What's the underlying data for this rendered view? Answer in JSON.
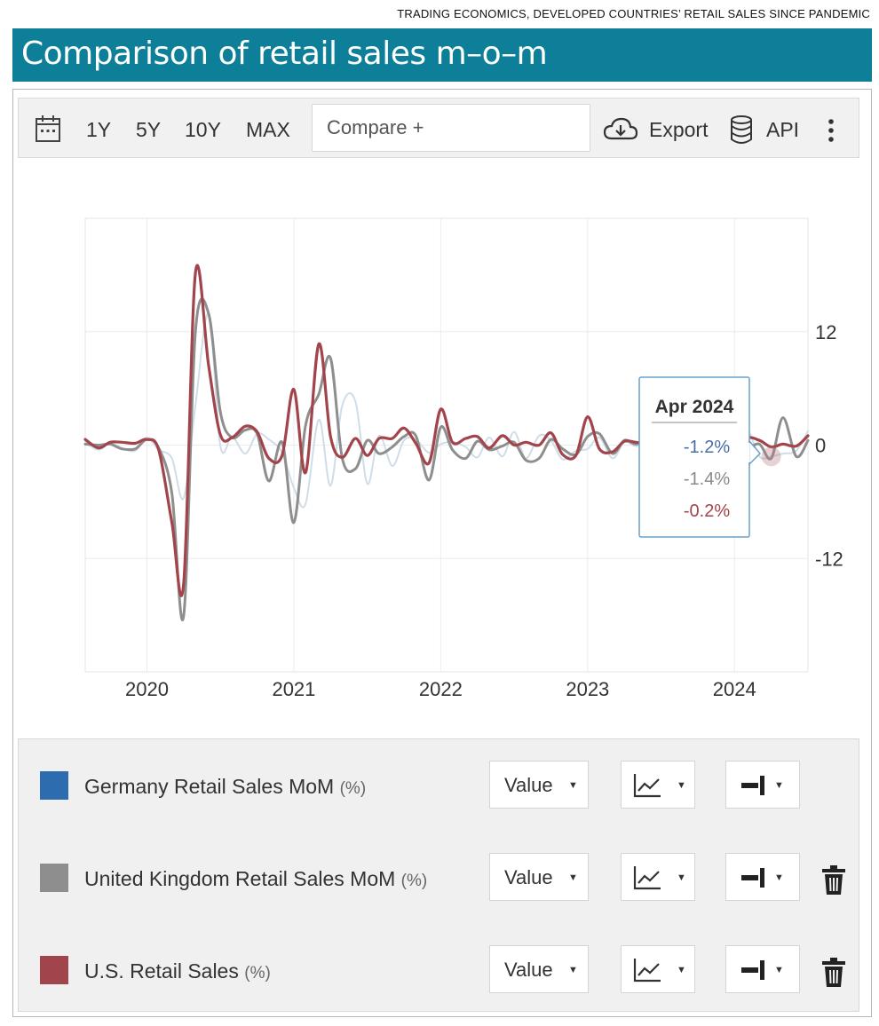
{
  "source_line": "TRADING ECONOMICS, DEVELOPED COUNTRIES’ RETAIL SALES SINCE PANDEMIC",
  "title": "Comparison of retail sales m–o–m",
  "toolbar": {
    "ranges": [
      "1Y",
      "5Y",
      "10Y",
      "MAX"
    ],
    "compare_placeholder": "Compare +",
    "export_label": "Export",
    "api_label": "API",
    "icons": [
      "calendar-icon",
      "cloud-download-icon",
      "database-icon",
      "more-vertical-icon"
    ]
  },
  "tooltip": {
    "date": "Apr 2024",
    "values": [
      "-1.2%",
      "-1.4%",
      "-0.2%"
    ]
  },
  "legend": {
    "rows": [
      {
        "name": "Germany Retail Sales MoM",
        "unit": "(%)",
        "color": "#2e6cb0",
        "value_label": "Value",
        "deletable": false
      },
      {
        "name": "United Kingdom Retail Sales MoM",
        "unit": "(%)",
        "color": "#8e8e8e",
        "value_label": "Value",
        "deletable": true
      },
      {
        "name": "U.S. Retail Sales",
        "unit": "(%)",
        "color": "#a2444b",
        "value_label": "Value",
        "deletable": true
      }
    ]
  },
  "chart_data": {
    "type": "line",
    "x_tick_labels": [
      "2020",
      "2021",
      "2022",
      "2023",
      "2024"
    ],
    "y_tick_labels": [
      "12",
      "0",
      "-12"
    ],
    "ylim": [
      -24,
      24
    ],
    "xlim": [
      2019.58,
      2024.5
    ],
    "grid": true,
    "series": [
      {
        "name": "Germany Retail Sales MoM",
        "color": "#cfdde9",
        "points": [
          [
            2019.58,
            0.3
          ],
          [
            2019.67,
            -0.5
          ],
          [
            2019.75,
            0.2
          ],
          [
            2019.83,
            -0.3
          ],
          [
            2019.92,
            -0.6
          ],
          [
            2020.0,
            0.8
          ],
          [
            2020.08,
            -0.5
          ],
          [
            2020.17,
            -1.4
          ],
          [
            2020.25,
            -5.6
          ],
          [
            2020.33,
            4.2
          ],
          [
            2020.42,
            13.9
          ],
          [
            2020.5,
            -0.1
          ],
          [
            2020.58,
            0.9
          ],
          [
            2020.67,
            -0.9
          ],
          [
            2020.75,
            1.2
          ],
          [
            2020.83,
            0.6
          ],
          [
            2020.92,
            -0.8
          ],
          [
            2021.0,
            -4.5
          ],
          [
            2021.08,
            -6.2
          ],
          [
            2021.17,
            2.7
          ],
          [
            2021.25,
            -4.3
          ],
          [
            2021.33,
            4.2
          ],
          [
            2021.42,
            4.6
          ],
          [
            2021.5,
            -4.1
          ],
          [
            2021.58,
            1.0
          ],
          [
            2021.67,
            -2.2
          ],
          [
            2021.75,
            0.5
          ],
          [
            2021.83,
            0.6
          ],
          [
            2021.92,
            -0.8
          ],
          [
            2022.0,
            0.1
          ],
          [
            2022.08,
            0.3
          ],
          [
            2022.17,
            -0.2
          ],
          [
            2022.25,
            -1.3
          ],
          [
            2022.33,
            0.8
          ],
          [
            2022.42,
            -1.2
          ],
          [
            2022.5,
            1.4
          ],
          [
            2022.58,
            -1.4
          ],
          [
            2022.67,
            1.0
          ],
          [
            2022.75,
            0.5
          ],
          [
            2022.83,
            -1.5
          ],
          [
            2022.92,
            -0.6
          ],
          [
            2023.0,
            -0.4
          ],
          [
            2023.08,
            0.8
          ],
          [
            2023.17,
            -1.4
          ],
          [
            2023.25,
            0.3
          ],
          [
            2023.33,
            -0.1
          ],
          [
            2023.42,
            0.3
          ],
          [
            2023.5,
            -0.5
          ],
          [
            2023.58,
            -0.8
          ],
          [
            2023.67,
            -0.6
          ],
          [
            2023.75,
            1.1
          ],
          [
            2023.83,
            -2.5
          ],
          [
            2023.92,
            0.2
          ],
          [
            2024.0,
            -0.4
          ],
          [
            2024.08,
            1.8
          ],
          [
            2024.17,
            -1.2
          ],
          [
            2024.25,
            -1.2
          ],
          [
            2024.33,
            -0.9
          ],
          [
            2024.42,
            -0.6
          ],
          [
            2024.5,
            1.5
          ]
        ]
      },
      {
        "name": "United Kingdom Retail Sales MoM",
        "color": "#8e8e8e",
        "points": [
          [
            2019.58,
            0.1
          ],
          [
            2019.67,
            0.0
          ],
          [
            2019.75,
            0.1
          ],
          [
            2019.83,
            -0.4
          ],
          [
            2019.92,
            -0.4
          ],
          [
            2020.0,
            0.6
          ],
          [
            2020.08,
            -0.3
          ],
          [
            2020.17,
            -5.1
          ],
          [
            2020.25,
            -18.1
          ],
          [
            2020.33,
            12.0
          ],
          [
            2020.42,
            13.9
          ],
          [
            2020.5,
            3.5
          ],
          [
            2020.58,
            0.8
          ],
          [
            2020.67,
            1.6
          ],
          [
            2020.75,
            1.2
          ],
          [
            2020.83,
            -3.8
          ],
          [
            2020.92,
            0.3
          ],
          [
            2021.0,
            -8.2
          ],
          [
            2021.08,
            2.1
          ],
          [
            2021.17,
            5.4
          ],
          [
            2021.25,
            9.2
          ],
          [
            2021.33,
            -1.4
          ],
          [
            2021.42,
            -2.5
          ],
          [
            2021.5,
            0.5
          ],
          [
            2021.58,
            -0.9
          ],
          [
            2021.67,
            -0.2
          ],
          [
            2021.75,
            0.9
          ],
          [
            2021.83,
            1.0
          ],
          [
            2021.92,
            -3.7
          ],
          [
            2022.0,
            1.9
          ],
          [
            2022.08,
            -0.5
          ],
          [
            2022.17,
            -1.4
          ],
          [
            2022.25,
            0.4
          ],
          [
            2022.33,
            -0.5
          ],
          [
            2022.42,
            -0.1
          ],
          [
            2022.5,
            0.3
          ],
          [
            2022.58,
            -1.6
          ],
          [
            2022.67,
            -1.4
          ],
          [
            2022.75,
            0.6
          ],
          [
            2022.83,
            -0.4
          ],
          [
            2022.92,
            -1.0
          ],
          [
            2023.0,
            0.9
          ],
          [
            2023.08,
            1.2
          ],
          [
            2023.17,
            -0.9
          ],
          [
            2023.25,
            0.5
          ],
          [
            2023.33,
            0.1
          ],
          [
            2023.42,
            0.6
          ],
          [
            2023.5,
            -1.2
          ],
          [
            2023.58,
            0.4
          ],
          [
            2023.67,
            -0.9
          ],
          [
            2023.75,
            0.3
          ],
          [
            2023.83,
            1.3
          ],
          [
            2023.92,
            -3.2
          ],
          [
            2024.0,
            3.4
          ],
          [
            2024.08,
            0.0
          ],
          [
            2024.17,
            0.1
          ],
          [
            2024.25,
            -1.4
          ],
          [
            2024.33,
            2.9
          ],
          [
            2024.42,
            -1.2
          ],
          [
            2024.5,
            0.5
          ]
        ]
      },
      {
        "name": "U.S. Retail Sales",
        "color": "#a2444b",
        "points": [
          [
            2019.58,
            0.6
          ],
          [
            2019.67,
            -0.3
          ],
          [
            2019.75,
            0.3
          ],
          [
            2019.83,
            0.3
          ],
          [
            2019.92,
            0.2
          ],
          [
            2020.0,
            0.6
          ],
          [
            2020.08,
            -0.5
          ],
          [
            2020.17,
            -8.2
          ],
          [
            2020.25,
            -14.7
          ],
          [
            2020.33,
            18.2
          ],
          [
            2020.42,
            8.4
          ],
          [
            2020.5,
            1.1
          ],
          [
            2020.58,
            0.8
          ],
          [
            2020.67,
            2.0
          ],
          [
            2020.75,
            1.4
          ],
          [
            2020.83,
            -1.4
          ],
          [
            2020.92,
            -1.1
          ],
          [
            2021.0,
            5.9
          ],
          [
            2021.08,
            -2.9
          ],
          [
            2021.17,
            10.7
          ],
          [
            2021.25,
            0.9
          ],
          [
            2021.33,
            -1.3
          ],
          [
            2021.42,
            0.7
          ],
          [
            2021.5,
            -1.1
          ],
          [
            2021.58,
            0.7
          ],
          [
            2021.67,
            0.7
          ],
          [
            2021.75,
            1.8
          ],
          [
            2021.83,
            0.2
          ],
          [
            2021.92,
            -1.9
          ],
          [
            2022.0,
            3.8
          ],
          [
            2022.08,
            0.3
          ],
          [
            2022.17,
            0.7
          ],
          [
            2022.25,
            0.9
          ],
          [
            2022.33,
            -0.3
          ],
          [
            2022.42,
            1.0
          ],
          [
            2022.5,
            0.0
          ],
          [
            2022.58,
            0.3
          ],
          [
            2022.67,
            0.0
          ],
          [
            2022.75,
            1.3
          ],
          [
            2022.83,
            -1.0
          ],
          [
            2022.92,
            -1.1
          ],
          [
            2023.0,
            3.0
          ],
          [
            2023.08,
            -0.4
          ],
          [
            2023.17,
            -0.7
          ],
          [
            2023.25,
            0.4
          ],
          [
            2023.33,
            0.3
          ],
          [
            2023.42,
            0.2
          ],
          [
            2023.5,
            0.6
          ],
          [
            2023.58,
            0.8
          ],
          [
            2023.67,
            0.7
          ],
          [
            2023.75,
            0.7
          ],
          [
            2023.83,
            -0.1
          ],
          [
            2023.92,
            0.6
          ],
          [
            2024.0,
            -1.1
          ],
          [
            2024.08,
            0.7
          ],
          [
            2024.17,
            0.5
          ],
          [
            2024.25,
            -0.2
          ],
          [
            2024.33,
            0.1
          ],
          [
            2024.42,
            -0.1
          ],
          [
            2024.5,
            1.0
          ]
        ]
      }
    ]
  }
}
